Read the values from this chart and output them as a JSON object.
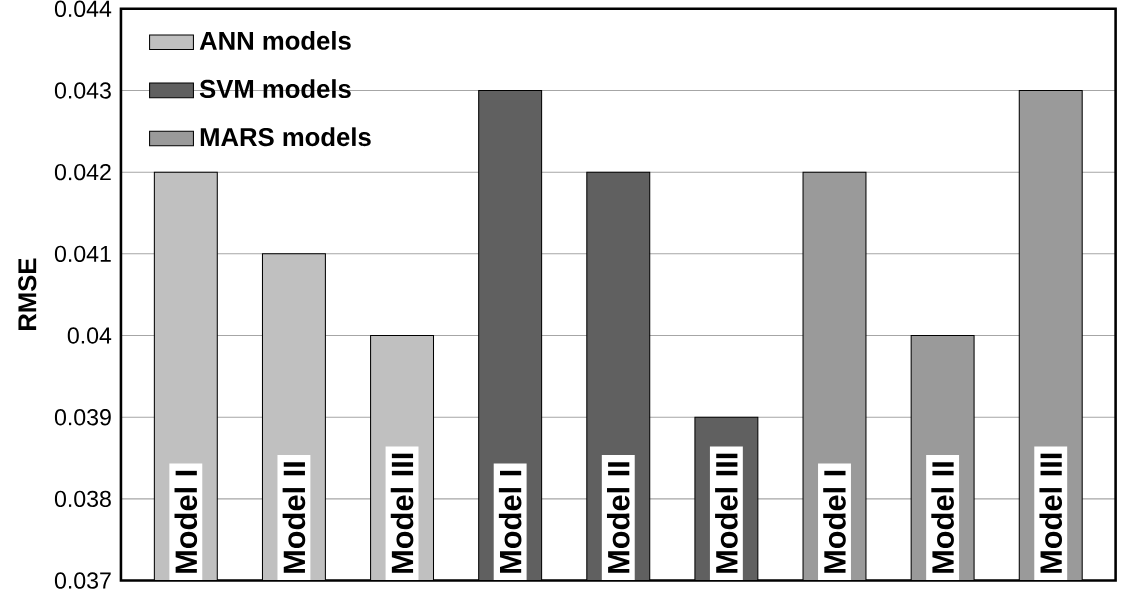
{
  "chart_data": {
    "type": "bar",
    "ylabel": "RMSE",
    "categories": [
      "Model I",
      "Model II",
      "Model III",
      "Model I",
      "Model II",
      "Model III",
      "Model I",
      "Model II",
      "Model III"
    ],
    "series": [
      {
        "name": "ANN models",
        "color": "#c0c0c0",
        "values": [
          0.042,
          0.041,
          0.04,
          null,
          null,
          null,
          null,
          null,
          null
        ]
      },
      {
        "name": "SVM models",
        "color": "#606060",
        "values": [
          null,
          null,
          null,
          0.043,
          0.042,
          0.039,
          null,
          null,
          null
        ]
      },
      {
        "name": "MARS models",
        "color": "#9a9a9a",
        "values": [
          null,
          null,
          null,
          null,
          null,
          null,
          0.042,
          0.04,
          0.043
        ]
      }
    ],
    "ylim": [
      0.037,
      0.044
    ],
    "yticks": [
      0.037,
      0.038,
      0.039,
      0.04,
      0.041,
      0.042,
      0.043,
      0.044
    ],
    "grid": "y",
    "legend": "top left"
  }
}
